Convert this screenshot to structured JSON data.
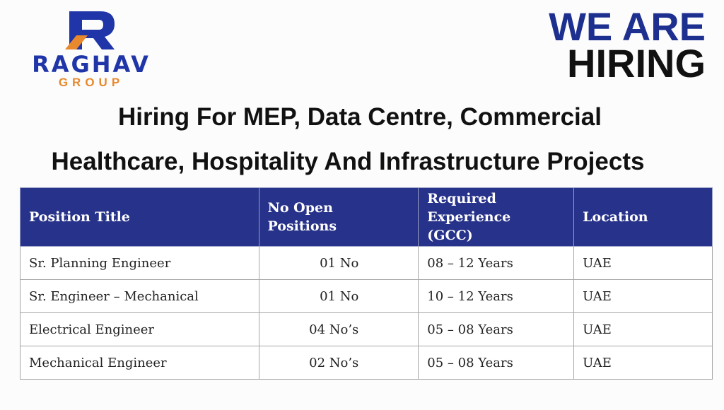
{
  "logo": {
    "name": "RAGHAV",
    "subtitle": "GROUP"
  },
  "banner": {
    "line1": "WE ARE",
    "line2": "HIRING"
  },
  "headline": {
    "line1": "Hiring For MEP, Data Centre, Commercial",
    "line2": "Healthcare, Hospitality And Infrastructure Projects"
  },
  "table": {
    "header": [
      "Position Title",
      "No Open Positions",
      "Required Experience (GCC)",
      "Location"
    ],
    "rows": [
      [
        "Sr. Planning Engineer",
        "01 No",
        "08 – 12 Years",
        "UAE"
      ],
      [
        "Sr. Engineer – Mechanical",
        "01 No",
        "10 – 12 Years",
        "UAE"
      ],
      [
        "Electrical Engineer",
        "04 No’s",
        "05 – 08 Years",
        "UAE"
      ],
      [
        "Mechanical Engineer",
        "02 No’s",
        "05 – 08 Years",
        "UAE"
      ]
    ]
  }
}
